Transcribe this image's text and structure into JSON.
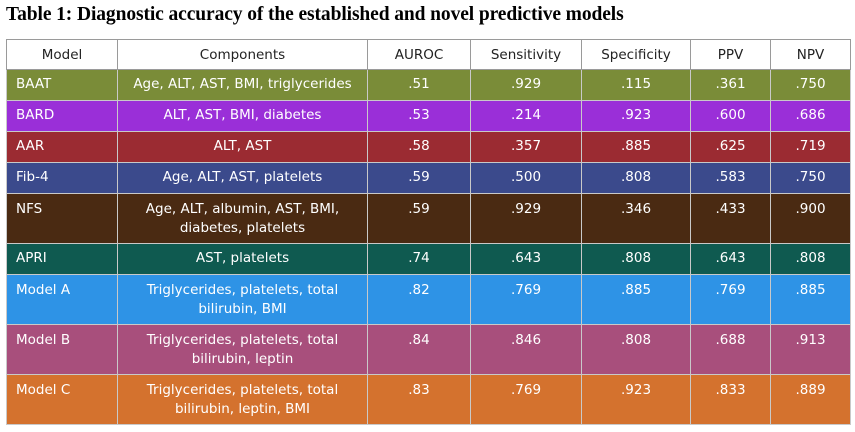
{
  "caption": "Table 1: Diagnostic accuracy of the established and novel predictive models",
  "headers": [
    "Model",
    "Components",
    "AUROC",
    "Sensitivity",
    "Specificity",
    "PPV",
    "NPV"
  ],
  "rows": [
    {
      "model": "BAAT",
      "components": [
        "Age, ALT, AST, BMI, triglycerides"
      ],
      "auroc": ".51",
      "sensitivity": ".929",
      "specificity": ".115",
      "ppv": ".361",
      "npv": ".750",
      "color": "#7a8c38"
    },
    {
      "model": "BARD",
      "components": [
        "ALT,  AST,  BMI, diabetes"
      ],
      "auroc": ".53",
      "sensitivity": ".214",
      "specificity": ".923",
      "ppv": ".600",
      "npv": ".686",
      "color": "#9a2fd8"
    },
    {
      "model": "AAR",
      "components": [
        "ALT, AST"
      ],
      "auroc": ".58",
      "sensitivity": ".357",
      "specificity": ".885",
      "ppv": ".625",
      "npv": ".719",
      "color": "#9b2b32"
    },
    {
      "model": "Fib-4",
      "components": [
        "Age, ALT, AST, platelets"
      ],
      "auroc": ".59",
      "sensitivity": ".500",
      "specificity": ".808",
      "ppv": ".583",
      "npv": ".750",
      "color": "#3b4a8c"
    },
    {
      "model": "NFS",
      "components": [
        "Age, ALT,  albumin, AST, BMI,",
        "diabetes, platelets"
      ],
      "auroc": ".59",
      "sensitivity": ".929",
      "specificity": ".346",
      "ppv": ".433",
      "npv": ".900",
      "color": "#4a2a12"
    },
    {
      "model": "APRI",
      "components": [
        "AST, platelets"
      ],
      "auroc": ".74",
      "sensitivity": ".643",
      "specificity": ".808",
      "ppv": ".643",
      "npv": ".808",
      "color": "#0f5a50"
    },
    {
      "model": "Model A",
      "components": [
        "Triglycerides, platelets, total",
        "bilirubin, BMI"
      ],
      "auroc": ".82",
      "sensitivity": ".769",
      "specificity": ".885",
      "ppv": ".769",
      "npv": ".885",
      "color": "#2e93e6"
    },
    {
      "model": "Model B",
      "components": [
        "Triglycerides, platelets, total",
        "bilirubin, leptin"
      ],
      "auroc": ".84",
      "sensitivity": ".846",
      "specificity": ".808",
      "ppv": ".688",
      "npv": ".913",
      "color": "#a84f7c"
    },
    {
      "model": "Model C",
      "components": [
        "Triglycerides, platelets, total",
        "bilirubin, leptin, BMI"
      ],
      "auroc": ".83",
      "sensitivity": ".769",
      "specificity": ".923",
      "ppv": ".833",
      "npv": ".889",
      "color": "#d4722e"
    }
  ]
}
